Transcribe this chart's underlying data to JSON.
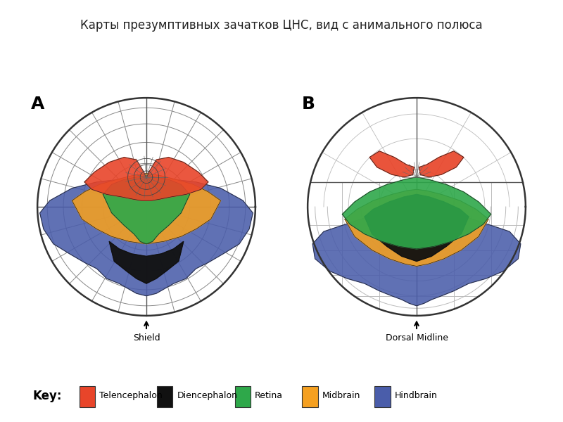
{
  "title": "Карты презумптивных зачатков ЦНС, вид с анимального полюса",
  "title_fontsize": 12,
  "label_A": "A",
  "label_B": "B",
  "label_shield": "Shield",
  "label_dorsal": "Dorsal Midline",
  "key_label": "Key:",
  "legend_items": [
    {
      "label": "Telencephalon",
      "color": "#E8452A"
    },
    {
      "label": "Diencephalon",
      "color": "#111111"
    },
    {
      "label": "Retina",
      "color": "#2EA84A"
    },
    {
      "label": "Midbrain",
      "color": "#F5A020"
    },
    {
      "label": "Hindbrain",
      "color": "#4A5DAA"
    }
  ],
  "bg_color": "#FFFFFF",
  "grid_color": "#BBBBBB",
  "outline_color": "#333333"
}
